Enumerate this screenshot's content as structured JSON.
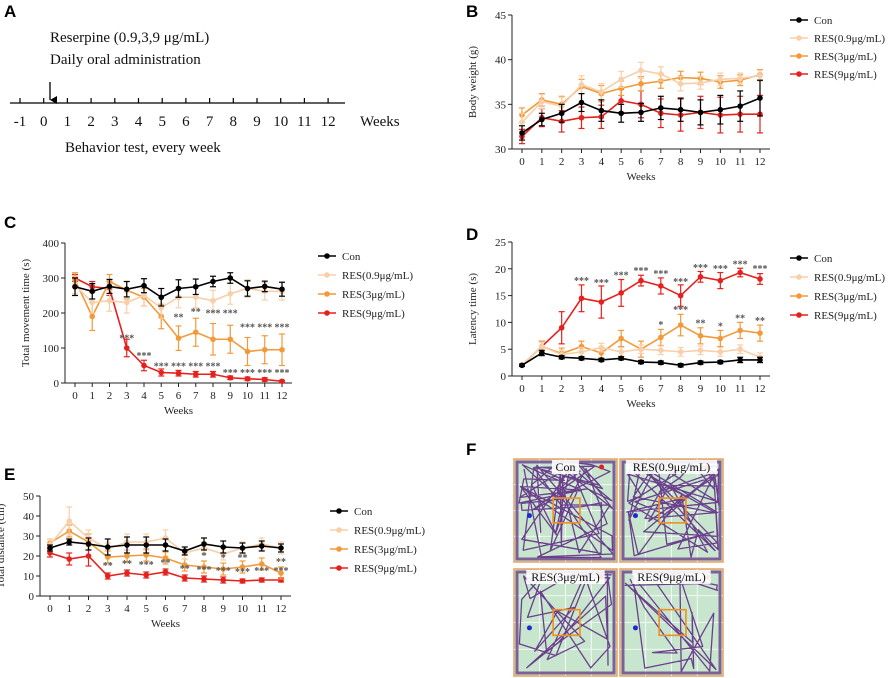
{
  "panels": {
    "A": {
      "letter": "A",
      "title_line1": "Reserpine (0.9,3,9 μg/mL)",
      "title_line2": "Daily oral administration",
      "weeks_label": "Weeks",
      "subtitle": "Behavior test, every week",
      "ticks": [
        "-1",
        "0",
        "1",
        "2",
        "3",
        "4",
        "5",
        "6",
        "7",
        "8",
        "9",
        "10",
        "11",
        "12"
      ]
    },
    "F": {
      "letter": "F",
      "arenas": [
        {
          "title": "Con"
        },
        {
          "title": "RES(0.9μg/mL)"
        },
        {
          "title": "RES(3μg/mL)"
        },
        {
          "title": "RES(9μg/mL)"
        }
      ]
    }
  },
  "colors": {
    "Con": "#000000",
    "RES09": "#f8cfa8",
    "RES3": "#f29a3a",
    "RES9": "#e5211e",
    "track": "#6b3f8c",
    "arena_bg": "#c7e6cd",
    "center_box": "#f09020"
  },
  "chart_data": [
    {
      "id": "B",
      "letter": "B",
      "type": "line",
      "ylabel": "Body weight (g)",
      "xlabel": "Weeks",
      "x": [
        0,
        1,
        2,
        3,
        4,
        5,
        6,
        7,
        8,
        9,
        10,
        11,
        12
      ],
      "ylim": [
        30,
        45
      ],
      "yticks": [
        30,
        35,
        40,
        45
      ],
      "series": [
        {
          "name": "Con",
          "key": "Con",
          "values": [
            31.8,
            33.3,
            34.0,
            35.2,
            34.3,
            34.0,
            34.1,
            34.6,
            34.4,
            34.1,
            34.4,
            34.8,
            35.7
          ],
          "err": [
            0.8,
            0.7,
            1.0,
            1.0,
            1.2,
            1.0,
            1.0,
            1.3,
            1.3,
            1.4,
            1.6,
            1.7,
            2.0
          ]
        },
        {
          "name": "RES(0.9μg/mL)",
          "key": "RES09",
          "values": [
            33.0,
            35.3,
            34.8,
            37.2,
            36.4,
            37.8,
            38.8,
            38.4,
            37.3,
            37.4,
            37.8,
            37.9,
            38.2
          ],
          "err": [
            1.0,
            0.8,
            1.0,
            1.0,
            0.9,
            0.9,
            0.9,
            0.8,
            0.8,
            0.7,
            0.7,
            0.6,
            0.6
          ]
        },
        {
          "name": "RES(3μg/mL)",
          "key": "RES3",
          "values": [
            33.8,
            35.5,
            35.0,
            37.0,
            36.2,
            36.8,
            37.3,
            37.6,
            38.0,
            37.9,
            37.5,
            37.7,
            38.3
          ],
          "err": [
            0.8,
            0.7,
            0.9,
            0.8,
            0.9,
            0.8,
            0.8,
            0.8,
            0.7,
            0.7,
            0.7,
            0.6,
            0.6
          ]
        },
        {
          "name": "RES(9μg/mL)",
          "key": "RES9",
          "values": [
            31.4,
            33.5,
            33.1,
            33.5,
            33.6,
            35.4,
            35.0,
            34.0,
            33.8,
            34.1,
            33.8,
            33.9,
            33.9
          ],
          "err": [
            0.8,
            1.0,
            1.2,
            1.2,
            1.3,
            1.3,
            1.5,
            1.6,
            1.8,
            1.8,
            2.0,
            2.0,
            2.1
          ]
        }
      ],
      "stars": []
    },
    {
      "id": "C",
      "letter": "C",
      "type": "line",
      "ylabel": "Total movement time (s)",
      "xlabel": "Weeks",
      "x": [
        0,
        1,
        2,
        3,
        4,
        5,
        6,
        7,
        8,
        9,
        10,
        11,
        12
      ],
      "ylim": [
        0,
        400
      ],
      "yticks": [
        0,
        100,
        200,
        300,
        400
      ],
      "series": [
        {
          "name": "Con",
          "key": "Con",
          "values": [
            275,
            262,
            276,
            268,
            278,
            245,
            270,
            275,
            290,
            300,
            270,
            276,
            268
          ],
          "err": [
            25,
            22,
            20,
            22,
            20,
            25,
            25,
            22,
            15,
            15,
            22,
            15,
            20
          ]
        },
        {
          "name": "RES(0.9μg/mL)",
          "key": "RES09",
          "values": [
            280,
            230,
            235,
            230,
            250,
            215,
            245,
            245,
            235,
            255,
            270,
            262,
            262
          ],
          "err": [
            25,
            30,
            30,
            30,
            30,
            30,
            30,
            30,
            30,
            30,
            25,
            25,
            25
          ]
        },
        {
          "name": "RES(3μg/mL)",
          "key": "RES3",
          "values": [
            295,
            190,
            290,
            265,
            245,
            190,
            128,
            145,
            125,
            125,
            90,
            95,
            95
          ],
          "err": [
            20,
            40,
            20,
            25,
            25,
            35,
            35,
            40,
            45,
            40,
            40,
            40,
            45
          ]
        },
        {
          "name": "RES(9μg/mL)",
          "key": "RES9",
          "values": [
            300,
            275,
            270,
            100,
            50,
            30,
            28,
            25,
            25,
            15,
            12,
            10,
            5
          ],
          "err": [
            10,
            15,
            20,
            25,
            15,
            10,
            8,
            8,
            8,
            5,
            5,
            5,
            3
          ]
        }
      ],
      "stars": [
        {
          "x": 3,
          "y": 118,
          "text": "***"
        },
        {
          "x": 4,
          "y": 68,
          "text": "***"
        },
        {
          "x": 5,
          "y": 38,
          "text": "***"
        },
        {
          "x": 6,
          "y": 38,
          "text": "***"
        },
        {
          "x": 7,
          "y": 38,
          "text": "***"
        },
        {
          "x": 8,
          "y": 38,
          "text": "***"
        },
        {
          "x": 9,
          "y": 20,
          "text": "***"
        },
        {
          "x": 10,
          "y": 20,
          "text": "***"
        },
        {
          "x": 11,
          "y": 20,
          "text": "***"
        },
        {
          "x": 12,
          "y": 20,
          "text": "***"
        },
        {
          "x": 6,
          "y": 178,
          "text": "**"
        },
        {
          "x": 7,
          "y": 195,
          "text": "**"
        },
        {
          "x": 8,
          "y": 190,
          "text": "***"
        },
        {
          "x": 9,
          "y": 190,
          "text": "***"
        },
        {
          "x": 10,
          "y": 150,
          "text": "***"
        },
        {
          "x": 11,
          "y": 150,
          "text": "***"
        },
        {
          "x": 12,
          "y": 150,
          "text": "***"
        }
      ]
    },
    {
      "id": "D",
      "letter": "D",
      "type": "line",
      "ylabel": "Latency time (s)",
      "xlabel": "Weeks",
      "x": [
        0,
        1,
        2,
        3,
        4,
        5,
        6,
        7,
        8,
        9,
        10,
        11,
        12
      ],
      "ylim": [
        0,
        25
      ],
      "yticks": [
        0,
        5,
        10,
        15,
        20,
        25
      ],
      "series": [
        {
          "name": "Con",
          "key": "Con",
          "values": [
            2.0,
            4.3,
            3.5,
            3.3,
            3.0,
            3.3,
            2.6,
            2.5,
            2.0,
            2.5,
            2.6,
            3.0,
            3.0
          ],
          "err": [
            0.2,
            0.5,
            0.3,
            0.3,
            0.3,
            0.3,
            0.3,
            0.3,
            0.3,
            0.3,
            0.3,
            0.5,
            0.5
          ]
        },
        {
          "name": "RES(0.9μg/mL)",
          "key": "RES09",
          "values": [
            2.0,
            5.5,
            4.0,
            4.5,
            5.3,
            4.5,
            5.0,
            4.8,
            4.5,
            4.8,
            4.5,
            5.0,
            3.5
          ],
          "err": [
            0.3,
            0.8,
            0.8,
            0.8,
            0.8,
            0.8,
            0.8,
            0.8,
            0.8,
            0.8,
            0.8,
            0.8,
            0.8
          ]
        },
        {
          "name": "RES(3μg/mL)",
          "key": "RES3",
          "values": [
            2.0,
            5.5,
            4.2,
            5.5,
            4.3,
            7.0,
            5.0,
            7.2,
            9.5,
            7.5,
            7.0,
            8.5,
            8.0
          ],
          "err": [
            0.3,
            1.0,
            1.0,
            1.0,
            1.0,
            1.5,
            1.5,
            1.5,
            2.0,
            1.5,
            1.5,
            1.5,
            1.5
          ]
        },
        {
          "name": "RES(9μg/mL)",
          "key": "RES9",
          "values": [
            2.0,
            5.5,
            9.0,
            14.5,
            13.8,
            15.5,
            17.8,
            16.8,
            15.0,
            18.5,
            17.8,
            19.3,
            18.1
          ],
          "err": [
            0.3,
            1.0,
            3.0,
            2.5,
            3.0,
            2.5,
            1.0,
            1.5,
            2.0,
            1.0,
            1.5,
            0.8,
            1.0
          ]
        }
      ],
      "stars": [
        {
          "x": 3,
          "y": 17.2,
          "text": "***"
        },
        {
          "x": 4,
          "y": 16.8,
          "text": "***"
        },
        {
          "x": 5,
          "y": 18.2,
          "text": "***"
        },
        {
          "x": 6,
          "y": 19.0,
          "text": "***"
        },
        {
          "x": 7,
          "y": 18.5,
          "text": "***"
        },
        {
          "x": 8,
          "y": 17.0,
          "text": "***"
        },
        {
          "x": 9,
          "y": 19.6,
          "text": "***"
        },
        {
          "x": 10,
          "y": 19.4,
          "text": "***"
        },
        {
          "x": 11,
          "y": 20.2,
          "text": "***"
        },
        {
          "x": 12,
          "y": 19.4,
          "text": "***"
        },
        {
          "x": 7,
          "y": 9.0,
          "text": "*"
        },
        {
          "x": 8,
          "y": 11.8,
          "text": "***"
        },
        {
          "x": 9,
          "y": 9.2,
          "text": "**"
        },
        {
          "x": 10,
          "y": 8.7,
          "text": "*"
        },
        {
          "x": 11,
          "y": 10.2,
          "text": "**"
        },
        {
          "x": 12,
          "y": 9.7,
          "text": "**"
        }
      ]
    },
    {
      "id": "E",
      "letter": "E",
      "type": "line",
      "ylabel": "Total  distance (cm)",
      "xlabel": "Weeks",
      "x": [
        0,
        1,
        2,
        3,
        4,
        5,
        6,
        7,
        8,
        9,
        10,
        11,
        12
      ],
      "ylim": [
        0,
        50
      ],
      "yticks": [
        0,
        10,
        20,
        30,
        40,
        50
      ],
      "series": [
        {
          "name": "Con",
          "key": "Con",
          "values": [
            24,
            27,
            26,
            24.5,
            25.5,
            25.5,
            25.5,
            22.5,
            26,
            24.5,
            24,
            25,
            24
          ],
          "err": [
            1.5,
            1.5,
            3,
            4,
            4,
            4,
            3,
            2,
            3,
            3,
            2.5,
            2.5,
            2
          ]
        },
        {
          "name": "RES(0.9μg/mL)",
          "key": "RES09",
          "values": [
            25.5,
            37.5,
            29,
            23.5,
            27,
            27,
            29,
            21.5,
            24,
            21,
            24,
            26,
            24
          ],
          "err": [
            3,
            7,
            4,
            3,
            4,
            4,
            4,
            3,
            3,
            3,
            3,
            3,
            3
          ]
        },
        {
          "name": "RES(3μg/mL)",
          "key": "RES3",
          "values": [
            26.5,
            32.5,
            27,
            19.5,
            20,
            20.5,
            19,
            15.5,
            14.5,
            13.5,
            14.5,
            16,
            11.5
          ],
          "err": [
            2,
            3,
            4,
            3,
            3,
            3,
            3,
            3,
            3,
            3,
            3,
            3,
            3
          ]
        },
        {
          "name": "RES(9μg/mL)",
          "key": "RES9",
          "values": [
            21.5,
            18.5,
            20,
            10,
            11.5,
            10.5,
            12,
            9,
            8.5,
            8,
            7.5,
            8,
            8
          ],
          "err": [
            2,
            3,
            5,
            1.5,
            1.5,
            1.5,
            1.5,
            1.5,
            1.5,
            1.5,
            1,
            1,
            1
          ]
        }
      ],
      "stars": [
        {
          "x": 3,
          "y": 13.5,
          "text": "**"
        },
        {
          "x": 4,
          "y": 14.5,
          "text": "**"
        },
        {
          "x": 5,
          "y": 14.0,
          "text": "***"
        },
        {
          "x": 6,
          "y": 15.0,
          "text": "**"
        },
        {
          "x": 7,
          "y": 12.0,
          "text": "**"
        },
        {
          "x": 8,
          "y": 11.5,
          "text": "***"
        },
        {
          "x": 9,
          "y": 11.0,
          "text": "***"
        },
        {
          "x": 10,
          "y": 10.5,
          "text": "***"
        },
        {
          "x": 11,
          "y": 11.0,
          "text": "***"
        },
        {
          "x": 12,
          "y": 11.0,
          "text": "***"
        },
        {
          "x": 8,
          "y": 18.5,
          "text": "*"
        },
        {
          "x": 9,
          "y": 17.5,
          "text": "*"
        },
        {
          "x": 10,
          "y": 17.5,
          "text": "**"
        },
        {
          "x": 12,
          "y": 15.5,
          "text": "**"
        }
      ]
    }
  ]
}
